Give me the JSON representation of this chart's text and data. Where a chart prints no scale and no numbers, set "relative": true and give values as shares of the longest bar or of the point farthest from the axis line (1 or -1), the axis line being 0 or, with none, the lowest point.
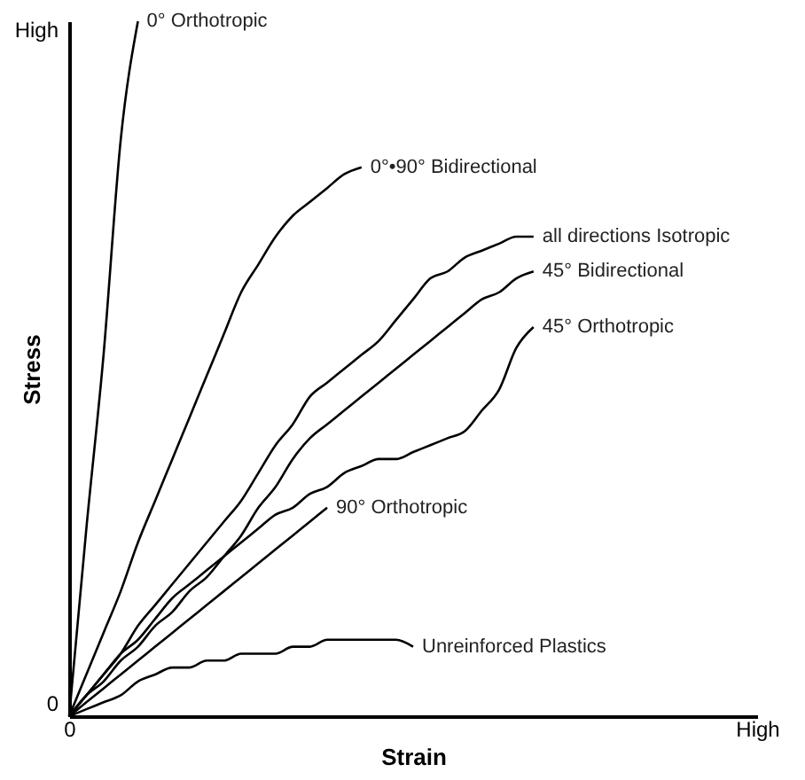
{
  "chart_data": {
    "type": "line",
    "relative": true,
    "xlabel": "Strain",
    "ylabel": "Stress",
    "legend": false,
    "grid": false,
    "annotations": [
      "0",
      "High"
    ],
    "categories": [
      "0",
      null,
      null,
      null,
      null,
      null,
      null,
      null,
      null,
      null,
      null,
      null,
      null,
      null,
      null,
      null,
      null,
      null,
      null,
      null,
      null,
      null,
      null,
      null,
      null,
      null,
      null,
      null,
      null,
      null,
      null,
      null,
      null,
      null,
      null,
      null,
      null,
      null,
      null,
      null,
      "High"
    ],
    "series": [
      {
        "name": "0° Orthotropic",
        "color": "#000000",
        "values": [
          0,
          0.27,
          0.52,
          0.83,
          1,
          null,
          null,
          null,
          null,
          null,
          null,
          null,
          null,
          null,
          null,
          null,
          null,
          null,
          null,
          null,
          null,
          null,
          null,
          null,
          null,
          null,
          null,
          null,
          null,
          null,
          null,
          null,
          null,
          null,
          null,
          null,
          null,
          null,
          null,
          null,
          null
        ]
      },
      {
        "name": "0°•90° Bidirectional",
        "color": "#000000",
        "values": [
          0,
          0.06,
          0.12,
          0.18,
          0.25,
          0.31,
          0.37,
          0.43,
          0.49,
          0.55,
          0.61,
          0.65,
          0.69,
          0.72,
          0.74,
          0.76,
          0.78,
          0.79,
          null,
          null,
          null,
          null,
          null,
          null,
          null,
          null,
          null,
          null,
          null,
          null,
          null,
          null,
          null,
          null,
          null,
          null,
          null,
          null,
          null,
          null,
          null
        ]
      },
      {
        "name": "all directions Isotropic",
        "color": "#000000",
        "values": [
          0,
          0.03,
          0.06,
          0.09,
          0.13,
          0.16,
          0.19,
          0.22,
          0.25,
          0.28,
          0.31,
          0.35,
          0.39,
          0.42,
          0.46,
          0.48,
          0.5,
          0.52,
          0.54,
          0.57,
          0.6,
          0.63,
          0.64,
          0.66,
          0.67,
          0.68,
          0.69,
          0.69,
          null,
          null,
          null,
          null,
          null,
          null,
          null,
          null,
          null,
          null,
          null,
          null,
          null
        ]
      },
      {
        "name": "45° Bidirectional",
        "color": "#000000",
        "values": [
          0,
          0.03,
          0.05,
          0.08,
          0.1,
          0.13,
          0.15,
          0.18,
          0.2,
          0.23,
          0.26,
          0.3,
          0.33,
          0.37,
          0.4,
          0.42,
          0.44,
          0.46,
          0.48,
          0.5,
          0.52,
          0.54,
          0.56,
          0.58,
          0.6,
          0.61,
          0.63,
          0.64,
          null,
          null,
          null,
          null,
          null,
          null,
          null,
          null,
          null,
          null,
          null,
          null,
          null
        ]
      },
      {
        "name": "45° Orthotropic",
        "color": "#000000",
        "values": [
          0,
          0.03,
          0.06,
          0.09,
          0.11,
          0.14,
          0.17,
          0.19,
          0.21,
          0.23,
          0.25,
          0.27,
          0.29,
          0.3,
          0.32,
          0.33,
          0.35,
          0.36,
          0.37,
          0.37,
          0.38,
          0.39,
          0.4,
          0.41,
          0.44,
          0.47,
          0.53,
          0.56,
          null,
          null,
          null,
          null,
          null,
          null,
          null,
          null,
          null,
          null,
          null,
          null,
          null
        ]
      },
      {
        "name": "90° Orthotropic",
        "color": "#000000",
        "values": [
          0,
          0.02,
          0.04,
          0.06,
          0.08,
          0.1,
          0.12,
          0.14,
          0.16,
          0.18,
          0.2,
          0.22,
          0.24,
          0.26,
          0.28,
          0.3,
          null,
          null,
          null,
          null,
          null,
          null,
          null,
          null,
          null,
          null,
          null,
          null,
          null,
          null,
          null,
          null,
          null,
          null,
          null,
          null,
          null,
          null,
          null,
          null,
          null
        ]
      },
      {
        "name": "Unreinforced Plastics",
        "color": "#000000",
        "values": [
          0,
          0.01,
          0.02,
          0.03,
          0.05,
          0.06,
          0.07,
          0.07,
          0.08,
          0.08,
          0.09,
          0.09,
          0.09,
          0.1,
          0.1,
          0.11,
          0.11,
          0.11,
          0.11,
          0.11,
          0.1,
          null,
          null,
          null,
          null,
          null,
          null,
          null,
          null,
          null,
          null,
          null,
          null,
          null,
          null,
          null,
          null,
          null,
          null,
          null,
          null
        ]
      }
    ]
  }
}
